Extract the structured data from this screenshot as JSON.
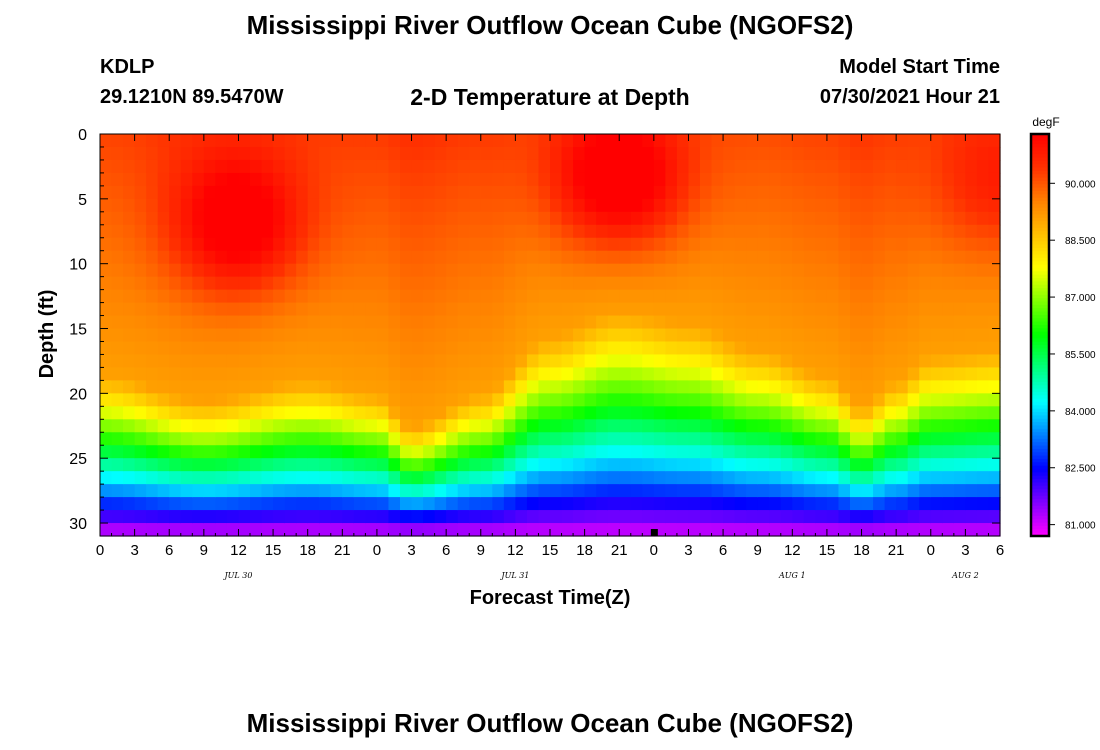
{
  "page": {
    "title": "Mississippi River Outflow Ocean Cube (NGOFS2)",
    "footer_title": "Mississippi River Outflow Ocean Cube (NGOFS2)"
  },
  "header": {
    "station": "KDLP",
    "coordinates": "29.1210N  89.5470W",
    "chart_title": "2-D Temperature at Depth",
    "model_label": "Model Start Time",
    "model_time": "07/30/2021 Hour 21"
  },
  "chart_data": {
    "type": "heatmap",
    "title": "2-D Temperature at Depth",
    "xlabel": "Forecast Time(Z)",
    "ylabel": "Depth (ft)",
    "x_hours_range": [
      0,
      78
    ],
    "x_tick_labels": [
      "0",
      "3",
      "6",
      "9",
      "12",
      "15",
      "18",
      "21",
      "0",
      "3",
      "6",
      "9",
      "12",
      "15",
      "18",
      "21",
      "0",
      "3",
      "6",
      "9",
      "12",
      "15",
      "18",
      "21",
      "0",
      "3",
      "6"
    ],
    "date_labels": [
      {
        "label": "JUL 30",
        "hour_label": "12",
        "day_index": 0
      },
      {
        "label": "JUL 31",
        "hour_label": "12",
        "day_index": 1
      },
      {
        "label": "AUG 1",
        "hour_label": "12",
        "day_index": 2
      },
      {
        "label": "AUG 2",
        "hour_label": "3",
        "day_index": 3
      }
    ],
    "y_range": [
      0,
      31
    ],
    "y_ticks": [
      0,
      5,
      10,
      15,
      20,
      25,
      30
    ],
    "y_inverted": true,
    "colorbar": {
      "unit": "degF",
      "range": [
        80.7,
        91.3
      ],
      "tick_labels": [
        "81.000",
        "82.500",
        "84.000",
        "85.500",
        "87.000",
        "88.500",
        "90.000"
      ],
      "colors": [
        "#ff00ff",
        "#8000ff",
        "#0000ff",
        "#0080ff",
        "#00ffff",
        "#00ff80",
        "#00ff00",
        "#80ff00",
        "#ffff00",
        "#ffc000",
        "#ff8000",
        "#ff3000",
        "#ff0000"
      ]
    },
    "thermocline_depth_ft": [
      {
        "hour": 0,
        "depth": 18.5
      },
      {
        "hour": 9,
        "depth": 20.5
      },
      {
        "hour": 18,
        "depth": 19.0
      },
      {
        "hour": 24,
        "depth": 20.0
      },
      {
        "hour": 27,
        "depth": 22.5
      },
      {
        "hour": 33,
        "depth": 20.0
      },
      {
        "hour": 39,
        "depth": 15.5
      },
      {
        "hour": 45,
        "depth": 13.5
      },
      {
        "hour": 51,
        "depth": 14.5
      },
      {
        "hour": 57,
        "depth": 16.5
      },
      {
        "hour": 63,
        "depth": 18.5
      },
      {
        "hour": 66,
        "depth": 21.0
      },
      {
        "hour": 69,
        "depth": 19.0
      },
      {
        "hour": 72,
        "depth": 17.0
      },
      {
        "hour": 78,
        "depth": 16.5
      }
    ],
    "warm_cores": [
      {
        "hour": 12,
        "depth": 7,
        "value": 91.0
      },
      {
        "hour": 45,
        "depth": 3.5,
        "value": 91.3
      },
      {
        "hour": 78,
        "depth": 4,
        "value": 90.0
      }
    ],
    "bottom_temp_degF": 80.9,
    "marker": {
      "hour": 48,
      "depth": 31
    }
  }
}
